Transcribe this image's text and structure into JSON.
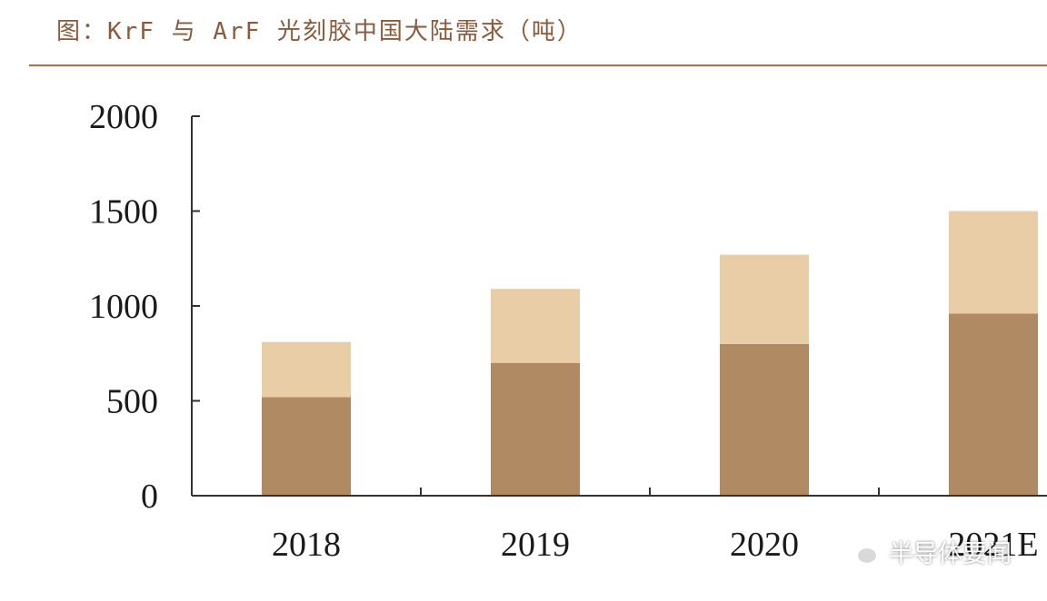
{
  "title": "图：KrF 与 ArF 光刻胶中国大陆需求（吨）",
  "watermark": {
    "text": "半导体要闻",
    "icon": "wechat-icon"
  },
  "colors": {
    "title": "#8a5a3c",
    "rule": "#b76a45",
    "axis": "#333333",
    "bottom_series": "#b08a63",
    "top_series": "#e9cda7"
  },
  "chart_data": {
    "type": "bar",
    "stacked": true,
    "categories": [
      "2018",
      "2019",
      "2020",
      "2021E"
    ],
    "series": [
      {
        "values": [
          520,
          700,
          800,
          960
        ],
        "color": "#b08a63"
      },
      {
        "values": [
          290,
          390,
          470,
          540
        ],
        "color": "#e9cda7"
      }
    ],
    "ylim": [
      0,
      2000
    ],
    "yticks": [
      0,
      500,
      1000,
      1500,
      2000
    ],
    "xlabel": "",
    "ylabel": "",
    "grid": false,
    "legend": "none"
  }
}
